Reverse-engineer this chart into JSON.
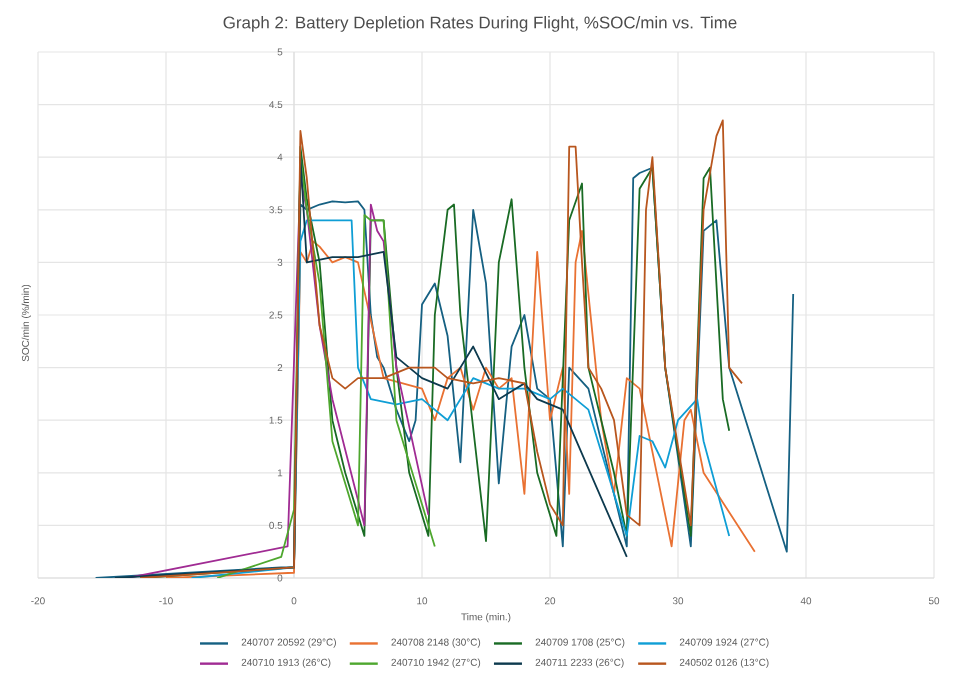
{
  "chart_data": {
    "type": "line",
    "title": "Graph 2: Battery Depletion Rates During Flight, %SOC/min vs. Time",
    "xlabel": "Time (min.)",
    "ylabel": "SOC/min (%/min)",
    "xlim": [
      -20,
      50
    ],
    "xticks": [
      -20,
      -10,
      0,
      10,
      20,
      30,
      40,
      50
    ],
    "ylim": [
      0,
      5
    ],
    "yticks": [
      0,
      0.5,
      1,
      1.5,
      2,
      2.5,
      3,
      3.5,
      4,
      4.5,
      5
    ],
    "grid": true,
    "legend": "bottom",
    "marker": "none",
    "series": [
      {
        "name": "240707 20592 (29°C)",
        "color": "#156082",
        "x": [
          -15.5,
          -1,
          0,
          0.5,
          1,
          2,
          3,
          4,
          5,
          5.5,
          6,
          6.5,
          7,
          8,
          9,
          9.5,
          10,
          11,
          12,
          13,
          14,
          15,
          16,
          17,
          18,
          19,
          20,
          21,
          21.5,
          23,
          26,
          26.5,
          27,
          28,
          29,
          31,
          32,
          33,
          34,
          38.5,
          39
        ],
        "values": [
          0,
          0.1,
          0.1,
          3.55,
          3.5,
          3.55,
          3.58,
          3.57,
          3.58,
          3.5,
          2.5,
          2.1,
          2.0,
          1.6,
          1.3,
          1.5,
          2.6,
          2.8,
          2.3,
          1.1,
          3.5,
          2.8,
          0.9,
          2.2,
          2.5,
          1.8,
          1.7,
          0.3,
          2.0,
          1.8,
          0.3,
          3.8,
          3.85,
          3.9,
          2.0,
          0.3,
          3.3,
          3.4,
          2.0,
          0.25,
          2.7
        ]
      },
      {
        "name": "240708 2148 (30°C)",
        "color": "#E97132",
        "x": [
          -10,
          0,
          0.5,
          1,
          1.5,
          2,
          3,
          4,
          5,
          7,
          10,
          11,
          12,
          13,
          14,
          15,
          16,
          17,
          18,
          19,
          20,
          21,
          21.5,
          22,
          22.5,
          24,
          25,
          26,
          27,
          29.5,
          30.5,
          31,
          32,
          36
        ],
        "values": [
          0,
          0.05,
          3.1,
          3.0,
          3.2,
          3.15,
          3.0,
          3.05,
          3.0,
          1.9,
          1.8,
          1.5,
          1.9,
          2.0,
          1.6,
          2.0,
          1.8,
          1.9,
          0.8,
          3.1,
          1.5,
          2.0,
          0.8,
          3.0,
          3.3,
          1.5,
          0.8,
          1.9,
          1.8,
          0.3,
          1.5,
          1.6,
          1.0,
          0.25
        ]
      },
      {
        "name": "240709 1708 (25°C)",
        "color": "#196B24",
        "x": [
          -12,
          0,
          0.5,
          1,
          2,
          3,
          4,
          5.5,
          6,
          7,
          8,
          9,
          10.5,
          11,
          12,
          12.5,
          13,
          15,
          16,
          17,
          18,
          19,
          20.5,
          21.5,
          22.5,
          23,
          25,
          26,
          27,
          28,
          29,
          31,
          32,
          32.5,
          33.5,
          34
        ],
        "values": [
          0,
          0.1,
          4.1,
          3.6,
          3.0,
          1.5,
          1.0,
          0.4,
          3.4,
          3.4,
          2.0,
          1.0,
          0.4,
          2.5,
          3.5,
          3.55,
          2.5,
          0.35,
          3.0,
          3.6,
          2.0,
          1.0,
          0.4,
          3.4,
          3.75,
          2.0,
          1.0,
          0.4,
          3.7,
          3.9,
          2.0,
          0.4,
          3.8,
          3.9,
          1.7,
          1.4
        ]
      },
      {
        "name": "240709 1924 (27°C)",
        "color": "#0F9ED5",
        "x": [
          -8,
          0,
          0.5,
          1,
          2,
          3,
          4,
          4.5,
          5,
          6,
          8,
          10,
          12,
          14,
          16,
          18,
          20,
          21,
          22,
          23,
          26,
          27,
          28,
          29,
          30,
          31.5,
          32,
          34
        ],
        "values": [
          0,
          0.1,
          3.2,
          3.4,
          3.4,
          3.4,
          3.4,
          3.4,
          2.0,
          1.7,
          1.65,
          1.7,
          1.5,
          1.9,
          1.8,
          1.8,
          1.7,
          1.8,
          1.7,
          1.6,
          0.4,
          1.35,
          1.3,
          1.05,
          1.5,
          1.7,
          1.3,
          0.4
        ]
      },
      {
        "name": "240710 1913 (26°C)",
        "color": "#A02B93",
        "x": [
          -13,
          -0.5,
          0.5,
          1,
          2,
          3,
          5.5,
          6,
          6.5,
          7,
          8,
          10.5
        ],
        "values": [
          0,
          0.3,
          3.8,
          3.5,
          2.4,
          1.7,
          0.5,
          3.55,
          3.3,
          3.2,
          2.0,
          0.6
        ]
      },
      {
        "name": "240710 1942 (27°C)",
        "color": "#4EA72E",
        "x": [
          -6,
          -1,
          0,
          0.5,
          1,
          2,
          3,
          5,
          5.5,
          6,
          7,
          8,
          11
        ],
        "values": [
          0,
          0.2,
          0.65,
          4.0,
          3.5,
          2.8,
          1.3,
          0.5,
          3.45,
          3.4,
          3.4,
          1.5,
          0.3
        ]
      },
      {
        "name": "240711 2233 (26°C)",
        "color": "#0D3A4E",
        "x": [
          -14,
          0,
          0.5,
          1,
          3,
          5,
          7,
          8,
          10,
          12,
          14,
          16,
          18,
          19,
          21,
          26
        ],
        "values": [
          0,
          0.1,
          4.0,
          3.0,
          3.05,
          3.05,
          3.1,
          2.1,
          1.9,
          1.8,
          2.2,
          1.7,
          1.85,
          1.7,
          1.6,
          0.2
        ]
      },
      {
        "name": "240502 0126 (13°C)",
        "color": "#B8561E",
        "x": [
          -12,
          0,
          0.5,
          1,
          2,
          3,
          4,
          5,
          7,
          9,
          11,
          12,
          14,
          16,
          18,
          19,
          20,
          21,
          21.5,
          22,
          22.5,
          23,
          24,
          25,
          26,
          27,
          27.5,
          28,
          29,
          31,
          32,
          33,
          33.5,
          34,
          35
        ],
        "values": [
          0,
          0.1,
          4.25,
          3.8,
          2.4,
          1.9,
          1.8,
          1.9,
          1.9,
          2.0,
          2.0,
          1.9,
          1.85,
          1.9,
          1.85,
          1.2,
          0.7,
          0.5,
          4.1,
          4.1,
          3.0,
          2.0,
          1.8,
          1.5,
          0.6,
          0.5,
          3.5,
          4.0,
          2.0,
          0.5,
          3.5,
          4.2,
          4.35,
          2.0,
          1.85
        ]
      }
    ]
  }
}
